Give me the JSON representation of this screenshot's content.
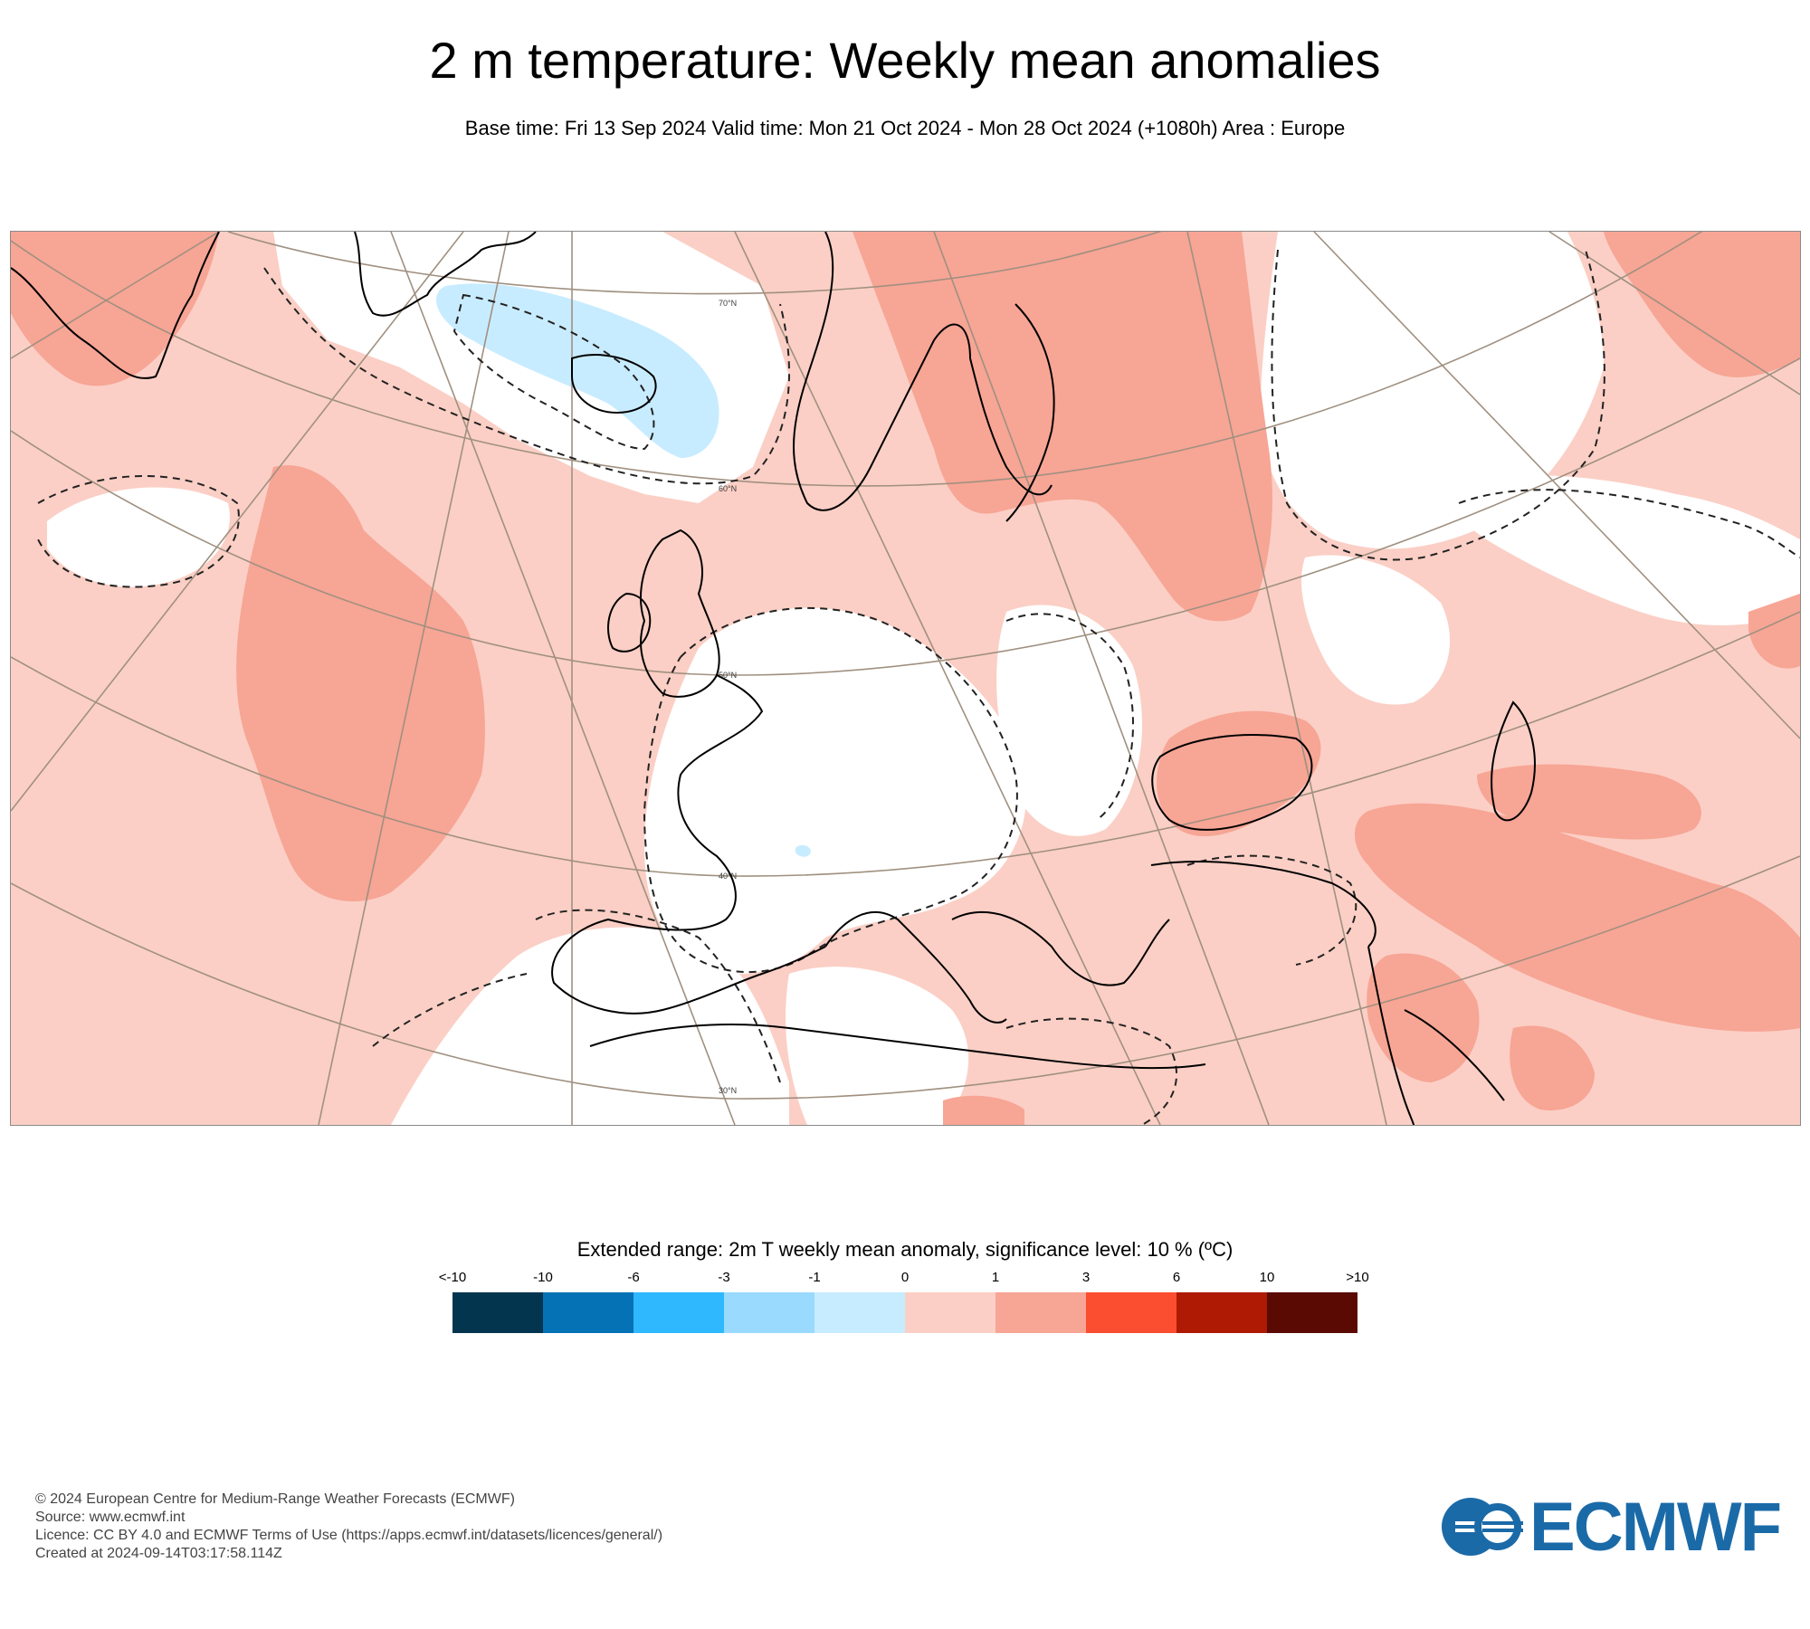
{
  "title": "2 m temperature: Weekly mean anomalies",
  "subtitle": "Base time: Fri 13 Sep 2024 Valid time: Mon 21 Oct 2024 - Mon 28 Oct 2024 (+1080h) Area : Europe",
  "map": {
    "lat_labels": [
      "70°N",
      "60°N",
      "50°N",
      "40°N",
      "30°N"
    ],
    "colors": {
      "pos_0_1": "#fbcfc5",
      "pos_1_3": "#f7a595",
      "neutral": "#ffffff",
      "neg_0_1": "#c8ecff",
      "coast": "#000000",
      "grid": "#a09080"
    }
  },
  "legend": {
    "title": "Extended range: 2m T weekly mean anomaly, significance level: 10 % (ºC)",
    "ticks": [
      "<-10",
      "-10",
      "-6",
      "-3",
      "-1",
      "0",
      "1",
      "3",
      "6",
      "10",
      ">10"
    ],
    "colors": [
      "#03354f",
      "#0572b5",
      "#2fb8fe",
      "#99dafe",
      "#c8ecff",
      "#fbcfc5",
      "#f7a595",
      "#fb4d2f",
      "#ae1a03",
      "#5a0a02"
    ]
  },
  "footer": {
    "lines": [
      "© 2024 European Centre for Medium-Range Weather Forecasts (ECMWF)",
      "Source: www.ecmwf.int",
      "Licence: CC BY 4.0 and ECMWF Terms of Use (https://apps.ecmwf.int/datasets/licences/general/)",
      "Created at 2024-09-14T03:17:58.114Z"
    ],
    "logo_text": "ECMWF"
  }
}
